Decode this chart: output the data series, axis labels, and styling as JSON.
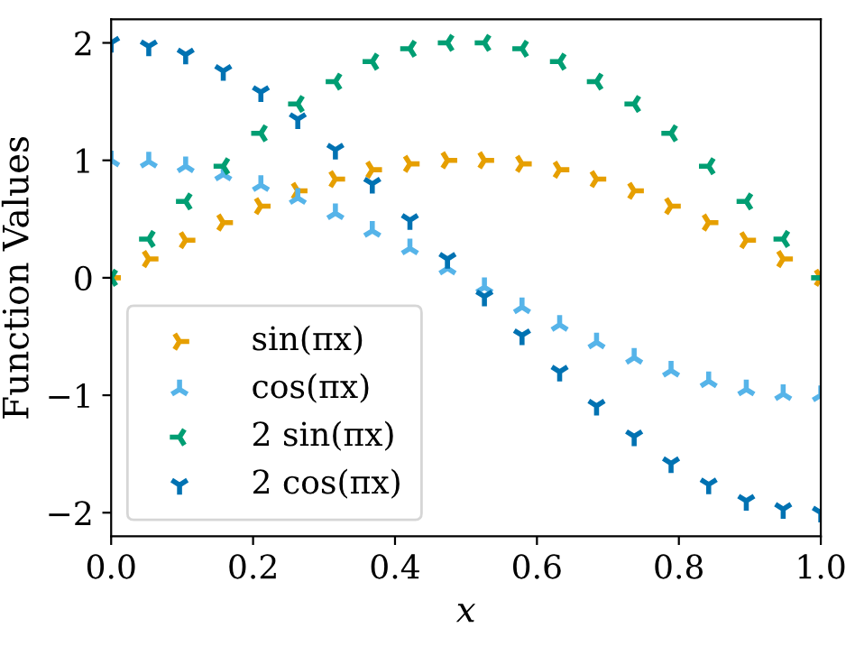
{
  "chart_data": {
    "type": "scatter",
    "xlabel": "x",
    "ylabel": "Function Values",
    "x": [
      0,
      0.053,
      0.105,
      0.158,
      0.211,
      0.263,
      0.316,
      0.368,
      0.421,
      0.474,
      0.526,
      0.579,
      0.632,
      0.684,
      0.737,
      0.789,
      0.842,
      0.895,
      0.947,
      1.0
    ],
    "series": [
      {
        "name": "sin(πx)",
        "color": "#e69f00",
        "marker": "cross",
        "values": [
          0,
          0.16,
          0.32,
          0.47,
          0.61,
          0.74,
          0.84,
          0.92,
          0.97,
          1.0,
          1.0,
          0.97,
          0.92,
          0.84,
          0.74,
          0.61,
          0.47,
          0.32,
          0.16,
          0
        ]
      },
      {
        "name": "cos(πx)",
        "color": "#56b4e9",
        "marker": "cross",
        "values": [
          1.0,
          0.99,
          0.95,
          0.88,
          0.79,
          0.68,
          0.55,
          0.4,
          0.25,
          0.08,
          -0.08,
          -0.25,
          -0.4,
          -0.55,
          -0.68,
          -0.79,
          -0.88,
          -0.95,
          -0.99,
          -1.0
        ]
      },
      {
        "name": "2 sin(πx)",
        "color": "#009e73",
        "marker": "cross",
        "values": [
          0,
          0.33,
          0.65,
          0.95,
          1.23,
          1.48,
          1.67,
          1.84,
          1.95,
          2.0,
          2.0,
          1.95,
          1.84,
          1.67,
          1.48,
          1.23,
          0.95,
          0.65,
          0.33,
          0
        ]
      },
      {
        "name": "2 cos(πx)",
        "color": "#0072b2",
        "marker": "cross",
        "values": [
          2.0,
          1.97,
          1.9,
          1.76,
          1.58,
          1.35,
          1.09,
          0.8,
          0.49,
          0.16,
          -0.16,
          -0.49,
          -0.8,
          -1.09,
          -1.35,
          -1.58,
          -1.76,
          -1.9,
          -1.97,
          -2.0
        ]
      }
    ],
    "xlim": [
      0,
      1
    ],
    "xticks": [
      {
        "value": 0,
        "label": "0.0"
      },
      0.2,
      0.4,
      0.6,
      0.8,
      {
        "value": 1,
        "label": "1.0"
      }
    ],
    "ylim": [
      -2.2,
      2.2
    ],
    "yticks": [
      {
        "value": -2,
        "label": "−2"
      },
      {
        "value": -1,
        "label": "−1"
      },
      0,
      1,
      2
    ],
    "legend": "bottom left",
    "grid": false
  }
}
